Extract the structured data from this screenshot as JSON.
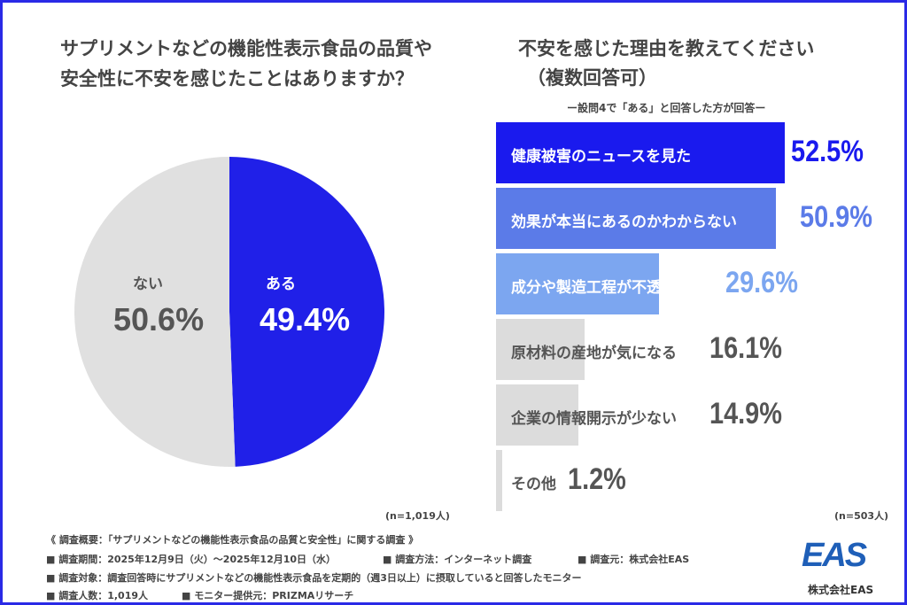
{
  "chart_data": [
    {
      "type": "pie",
      "title": "サプリメントなどの機能性表示食品の品質や安全性に不安を感じたことはありますか？",
      "slices": [
        {
          "label": "ある",
          "value": 49.4,
          "color": "#2020e8"
        },
        {
          "label": "ない",
          "value": 50.6,
          "color": "#e0e0e0"
        }
      ],
      "sample": "(n=1,019人)"
    },
    {
      "type": "bar",
      "orientation": "horizontal",
      "title": "不安を感じた理由を教えてください",
      "title2": "（複数回答可）",
      "subtitle": "ー設問4で「ある」と回答した方が回答ー",
      "categories": [
        "健康被害のニュースを見た",
        "効果が本当にあるのかわからない",
        "成分や製造工程が不透明",
        "原材料の産地が気になる",
        "企業の情報開示が少ない",
        "その他"
      ],
      "values": [
        52.5,
        50.9,
        29.6,
        16.1,
        14.9,
        1.2
      ],
      "colors": [
        "#1a1aee",
        "#5b7be8",
        "#7ca6f0",
        "#dcdcdc",
        "#dcdcdc",
        "#dcdcdc"
      ],
      "value_colors": [
        "#1a1aee",
        "#5b7be8",
        "#7ca6f0",
        "#555555",
        "#555555",
        "#555555"
      ],
      "sample": "(n=503人)"
    }
  ],
  "footer": {
    "overview": "《 調査概要：「サプリメントなどの機能性表示食品の品質と安全性」に関する調査 》",
    "line1a": "■ 調査期間：2025年12月9日（火）〜2025年12月10日（水）",
    "line1b": "■ 調査方法：インターネット調査",
    "line1c": "■ 調査元：株式会社EAS",
    "line2": "■ 調査対象：調査回答時にサプリメントなどの機能性表示食品を定期的（週3日以上）に摂取していると回答したモニター",
    "line3a": "■ 調査人数：1,019人",
    "line3b": "■ モニター提供元：PRIZMAリサーチ"
  },
  "logo": {
    "mark": "EAS",
    "company": "株式会社EAS"
  }
}
